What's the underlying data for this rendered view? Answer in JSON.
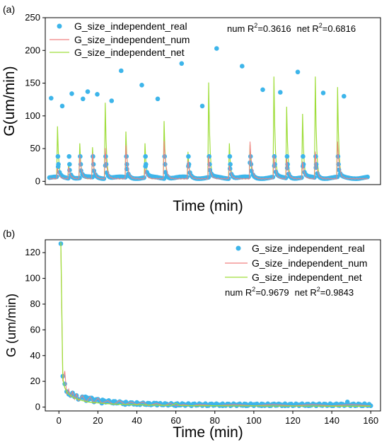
{
  "figure": {
    "colors": {
      "real": "#3db5ea",
      "num": "#f08080",
      "net": "#9fdd3a"
    }
  },
  "chart_data": [
    {
      "type": "scatter",
      "panel_label": "(a)",
      "xlabel": "Time (min)",
      "ylabel": "G(um/min)",
      "xticks_shown": false,
      "ylim": [
        -5,
        250
      ],
      "yticks": [
        0,
        50,
        100,
        150,
        200,
        250
      ],
      "legend_placement": "top-left",
      "legend": [
        "G_size_independent_real",
        "G_size_independent_num",
        "G_size_independent_net"
      ],
      "annotation": {
        "num_prefix": "num R",
        "num_value": "=0.3616",
        "net_prefix": "net R",
        "net_value": "=0.6816",
        "sup": "2"
      },
      "x_range": [
        0,
        200
      ],
      "cycle_starts": [
        5,
        12,
        19,
        27,
        35,
        48,
        60,
        72,
        87,
        100,
        113,
        126,
        141,
        149,
        159,
        167,
        181
      ],
      "peaks_real": [
        127,
        115,
        134,
        126,
        137,
        133,
        123,
        169,
        147,
        126,
        180,
        115,
        203,
        176,
        140,
        136,
        167,
        135,
        130
      ],
      "peaks_real_x": [
        1,
        8,
        14,
        21,
        24,
        30,
        39,
        45,
        58,
        68,
        83,
        96,
        105,
        121,
        134,
        145,
        156,
        172,
        185
      ],
      "peaks_net": [
        84,
        27,
        58,
        52,
        120,
        76,
        58,
        92,
        45,
        151,
        58,
        56,
        160,
        114,
        103,
        160,
        144,
        120
      ],
      "peaks_num": [
        20,
        22,
        40,
        42,
        50,
        56,
        20,
        62,
        32,
        38,
        25,
        60,
        40,
        35,
        30,
        45,
        60,
        30
      ],
      "baseline": 4
    },
    {
      "type": "scatter",
      "panel_label": "(b)",
      "xlabel": "Time (min)",
      "ylabel": "G (um/min)",
      "xlim": [
        -7,
        165
      ],
      "ylim": [
        -3,
        130
      ],
      "xticks": [
        0,
        20,
        40,
        60,
        80,
        100,
        120,
        140,
        160
      ],
      "yticks": [
        0,
        20,
        40,
        60,
        80,
        100,
        120
      ],
      "legend_placement": "top-right",
      "legend": [
        "G_size_independent_real",
        "G_size_independent_num",
        "G_size_independent_net"
      ],
      "annotation": {
        "num_prefix": "num R",
        "num_value": "=0.9679",
        "net_prefix": "net R",
        "net_value": "=0.9843",
        "sup": "2"
      },
      "real_points": [
        [
          1,
          127
        ],
        [
          2,
          24
        ],
        [
          3,
          18
        ],
        [
          4,
          12
        ],
        [
          5,
          10
        ],
        [
          6,
          9
        ],
        [
          7,
          11
        ],
        [
          8,
          8
        ],
        [
          9,
          9
        ],
        [
          10,
          6
        ],
        [
          12,
          8
        ],
        [
          14,
          5
        ],
        [
          16,
          7
        ],
        [
          18,
          4
        ],
        [
          20,
          6
        ],
        [
          22,
          3
        ],
        [
          25,
          4
        ],
        [
          28,
          3
        ],
        [
          31,
          4
        ],
        [
          34,
          2
        ],
        [
          37,
          3
        ],
        [
          40,
          2
        ],
        [
          43,
          3
        ],
        [
          46,
          2
        ],
        [
          50,
          3
        ],
        [
          54,
          2
        ],
        [
          57,
          2
        ],
        [
          60,
          1
        ],
        [
          64,
          2
        ],
        [
          68,
          1
        ],
        [
          72,
          2
        ],
        [
          76,
          1
        ],
        [
          80,
          2
        ],
        [
          84,
          1
        ],
        [
          88,
          1
        ],
        [
          92,
          2
        ],
        [
          96,
          1
        ],
        [
          100,
          2
        ],
        [
          104,
          1
        ],
        [
          108,
          1
        ],
        [
          112,
          2
        ],
        [
          116,
          1
        ],
        [
          120,
          1
        ],
        [
          124,
          2
        ],
        [
          128,
          1
        ],
        [
          132,
          1
        ],
        [
          136,
          2
        ],
        [
          140,
          1
        ],
        [
          144,
          2
        ],
        [
          148,
          4
        ],
        [
          152,
          1
        ],
        [
          156,
          1
        ],
        [
          160,
          1
        ]
      ],
      "num_line": [
        [
          1,
          124
        ],
        [
          2,
          20
        ],
        [
          3,
          28
        ],
        [
          4,
          10
        ],
        [
          5,
          14
        ],
        [
          6,
          8
        ],
        [
          7,
          12
        ],
        [
          8,
          6
        ],
        [
          9,
          10
        ],
        [
          10,
          5
        ],
        [
          12,
          9
        ],
        [
          14,
          4
        ],
        [
          16,
          8
        ],
        [
          18,
          3
        ],
        [
          20,
          7
        ],
        [
          22,
          3
        ],
        [
          25,
          5
        ],
        [
          28,
          2
        ],
        [
          31,
          5
        ],
        [
          34,
          2
        ],
        [
          37,
          4
        ],
        [
          40,
          2
        ],
        [
          43,
          4
        ],
        [
          46,
          1
        ],
        [
          50,
          3
        ],
        [
          54,
          1
        ],
        [
          57,
          3
        ],
        [
          60,
          1
        ],
        [
          64,
          2
        ],
        [
          68,
          1
        ],
        [
          72,
          2
        ],
        [
          80,
          1
        ],
        [
          90,
          2
        ],
        [
          100,
          1
        ],
        [
          110,
          2
        ],
        [
          120,
          1
        ],
        [
          130,
          2
        ],
        [
          140,
          1
        ],
        [
          150,
          2
        ],
        [
          160,
          1
        ]
      ],
      "net_line": [
        [
          1,
          128
        ],
        [
          2,
          22
        ],
        [
          3,
          15
        ],
        [
          4,
          12
        ],
        [
          5,
          10
        ],
        [
          6,
          9
        ],
        [
          7,
          8
        ],
        [
          8,
          7
        ],
        [
          10,
          6
        ],
        [
          12,
          5
        ],
        [
          15,
          4
        ],
        [
          18,
          3.5
        ],
        [
          22,
          3
        ],
        [
          26,
          2.5
        ],
        [
          30,
          2.2
        ],
        [
          35,
          2
        ],
        [
          40,
          1.8
        ],
        [
          50,
          1.5
        ],
        [
          58,
          1.2
        ],
        [
          60,
          3
        ],
        [
          62,
          1.2
        ],
        [
          70,
          1
        ],
        [
          80,
          1
        ],
        [
          90,
          0.9
        ],
        [
          100,
          0.9
        ],
        [
          110,
          0.8
        ],
        [
          120,
          0.8
        ],
        [
          130,
          0.8
        ],
        [
          140,
          0.7
        ],
        [
          150,
          0.7
        ],
        [
          160,
          0.7
        ]
      ]
    }
  ]
}
